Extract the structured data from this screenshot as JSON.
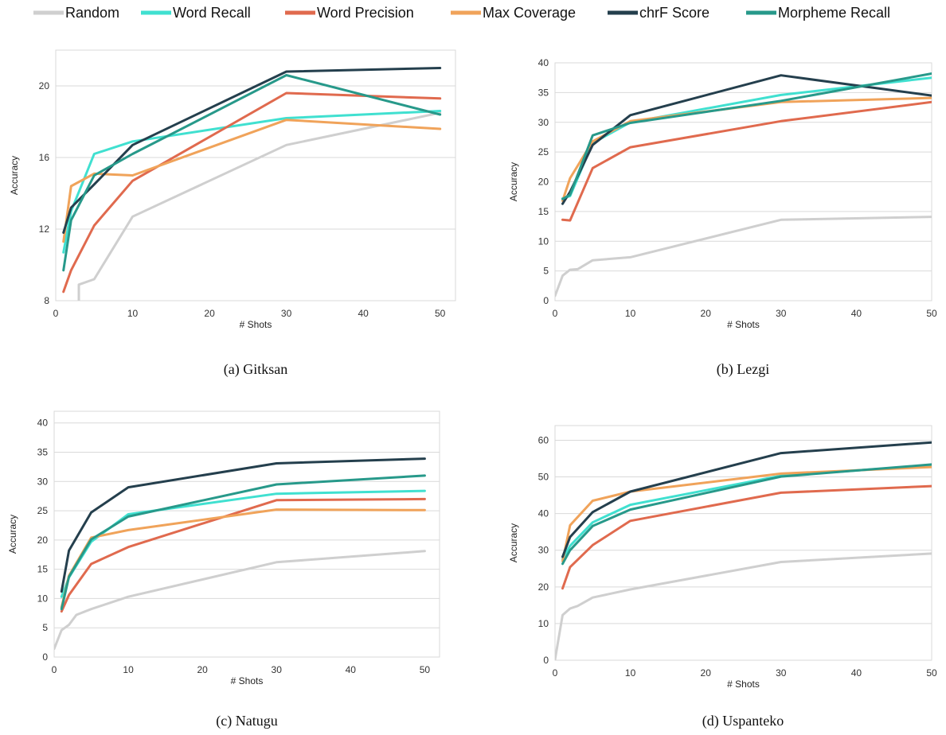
{
  "legend": {
    "placement": "top",
    "items": [
      {
        "label": "Random",
        "color": "#cfcfcf"
      },
      {
        "label": "Word Recall",
        "color": "#40e0d0"
      },
      {
        "label": "Word Precision",
        "color": "#e06a4e"
      },
      {
        "label": "Max Coverage",
        "color": "#f0a35a"
      },
      {
        "label": "chrF Score",
        "color": "#243f4d"
      },
      {
        "label": "Morpheme Recall",
        "color": "#27998a"
      }
    ]
  },
  "chart_data": [
    {
      "type": "line",
      "caption": "(a) Gitksan",
      "xlabel": "# Shots",
      "ylabel": "Accuracy",
      "xlim": [
        0,
        52
      ],
      "ylim": [
        8,
        22
      ],
      "xticks": [
        0,
        10,
        20,
        30,
        40,
        50
      ],
      "yticks": [
        8,
        12,
        16,
        20
      ],
      "grid": "horizontal",
      "series": [
        {
          "name": "Random",
          "color": "#cfcfcf",
          "x": [
            3,
            3,
            5,
            10,
            30,
            50
          ],
          "y": [
            7.9,
            8.9,
            9.2,
            12.7,
            16.7,
            18.5
          ]
        },
        {
          "name": "Word Recall",
          "color": "#40e0d0",
          "x": [
            1,
            2,
            5,
            10,
            30,
            50
          ],
          "y": [
            10.7,
            13.0,
            16.2,
            16.9,
            18.2,
            18.6
          ]
        },
        {
          "name": "Word Precision",
          "color": "#e06a4e",
          "x": [
            1,
            2,
            5,
            10,
            30,
            50
          ],
          "y": [
            8.5,
            9.7,
            12.2,
            14.7,
            19.6,
            19.3
          ]
        },
        {
          "name": "Max Coverage",
          "color": "#f0a35a",
          "x": [
            1,
            2,
            5,
            10,
            30,
            50
          ],
          "y": [
            11.3,
            14.4,
            15.1,
            15.0,
            18.1,
            17.6
          ]
        },
        {
          "name": "chrF Score",
          "color": "#243f4d",
          "x": [
            1,
            2,
            5,
            10,
            30,
            50
          ],
          "y": [
            11.8,
            13.2,
            14.5,
            16.7,
            20.8,
            21.0
          ]
        },
        {
          "name": "Morpheme Recall",
          "color": "#27998a",
          "x": [
            1,
            2,
            5,
            10,
            30,
            50
          ],
          "y": [
            9.7,
            12.5,
            15.0,
            16.2,
            20.6,
            18.4
          ]
        }
      ]
    },
    {
      "type": "line",
      "caption": "(b) Lezgi",
      "xlabel": "# Shots",
      "ylabel": "Accuracy",
      "xlim": [
        0,
        50
      ],
      "ylim": [
        0,
        40
      ],
      "xticks": [
        0,
        10,
        20,
        30,
        40,
        50
      ],
      "yticks": [
        0,
        5,
        10,
        15,
        20,
        25,
        30,
        35,
        40
      ],
      "grid": "horizontal",
      "series": [
        {
          "name": "Random",
          "color": "#cfcfcf",
          "x": [
            0,
            1,
            2,
            3,
            5,
            10,
            30,
            50
          ],
          "y": [
            0.8,
            4.2,
            5.2,
            5.3,
            6.8,
            7.3,
            13.6,
            14.1
          ]
        },
        {
          "name": "Word Recall",
          "color": "#40e0d0",
          "x": [
            1,
            2,
            5,
            10,
            30,
            50
          ],
          "y": [
            17.2,
            17.6,
            26.5,
            30.0,
            34.6,
            37.5
          ]
        },
        {
          "name": "Word Precision",
          "color": "#e06a4e",
          "x": [
            1,
            2,
            5,
            10,
            30,
            50
          ],
          "y": [
            13.6,
            13.5,
            22.3,
            25.8,
            30.2,
            33.4
          ]
        },
        {
          "name": "Max Coverage",
          "color": "#f0a35a",
          "x": [
            1,
            2,
            5,
            10,
            30,
            50
          ],
          "y": [
            16.8,
            20.6,
            26.8,
            30.2,
            33.4,
            34.1
          ]
        },
        {
          "name": "chrF Score",
          "color": "#243f4d",
          "x": [
            1,
            2,
            5,
            10,
            30,
            50
          ],
          "y": [
            16.3,
            18.3,
            26.2,
            31.2,
            37.9,
            34.5
          ]
        },
        {
          "name": "Morpheme Recall",
          "color": "#27998a",
          "x": [
            1,
            2,
            5,
            10,
            30,
            50
          ],
          "y": [
            17.1,
            17.8,
            27.8,
            29.9,
            33.6,
            38.2
          ]
        }
      ]
    },
    {
      "type": "line",
      "caption": "(c) Natugu",
      "xlabel": "# Shots",
      "ylabel": "Accuracy",
      "xlim": [
        0,
        52
      ],
      "ylim": [
        0,
        42
      ],
      "xticks": [
        0,
        10,
        20,
        30,
        40,
        50
      ],
      "yticks": [
        0,
        5,
        10,
        15,
        20,
        25,
        30,
        35,
        40
      ],
      "grid": "horizontal",
      "series": [
        {
          "name": "Random",
          "color": "#cfcfcf",
          "x": [
            0,
            1,
            2,
            3,
            5,
            10,
            30,
            50
          ],
          "y": [
            1.4,
            4.6,
            5.5,
            7.2,
            8.2,
            10.3,
            16.2,
            18.1
          ]
        },
        {
          "name": "Word Recall",
          "color": "#40e0d0",
          "x": [
            1,
            2,
            5,
            10,
            30,
            50
          ],
          "y": [
            10.3,
            13.6,
            19.7,
            24.4,
            27.9,
            28.4
          ]
        },
        {
          "name": "Word Precision",
          "color": "#e06a4e",
          "x": [
            1,
            2,
            5,
            10,
            30,
            50
          ],
          "y": [
            7.8,
            10.6,
            15.9,
            18.8,
            26.8,
            27.0
          ]
        },
        {
          "name": "Max Coverage",
          "color": "#f0a35a",
          "x": [
            1,
            2,
            5,
            10,
            30,
            50
          ],
          "y": [
            8.5,
            13.9,
            20.4,
            21.7,
            25.2,
            25.1
          ]
        },
        {
          "name": "chrF Score",
          "color": "#243f4d",
          "x": [
            1,
            2,
            5,
            10,
            30,
            50
          ],
          "y": [
            11.2,
            18.2,
            24.7,
            29.0,
            33.1,
            33.9
          ]
        },
        {
          "name": "Morpheme Recall",
          "color": "#27998a",
          "x": [
            1,
            2,
            5,
            10,
            30,
            50
          ],
          "y": [
            8.2,
            13.7,
            20.1,
            24.0,
            29.5,
            31.0
          ]
        }
      ]
    },
    {
      "type": "line",
      "caption": "(d) Uspanteko",
      "xlabel": "# Shots",
      "ylabel": "Accuracy",
      "xlim": [
        0,
        50
      ],
      "ylim": [
        0,
        64
      ],
      "xticks": [
        0,
        10,
        20,
        30,
        40,
        50
      ],
      "yticks": [
        0,
        10,
        20,
        30,
        40,
        50,
        60
      ],
      "grid": "horizontal",
      "series": [
        {
          "name": "Random",
          "color": "#cfcfcf",
          "x": [
            0,
            1,
            2,
            3,
            5,
            10,
            30,
            50
          ],
          "y": [
            0.2,
            12.3,
            14.1,
            14.8,
            17.1,
            19.3,
            26.8,
            29.1
          ]
        },
        {
          "name": "Word Recall",
          "color": "#40e0d0",
          "x": [
            1,
            2,
            5,
            10,
            30,
            50
          ],
          "y": [
            27.6,
            31.2,
            37.6,
            42.4,
            50.3,
            53.2
          ]
        },
        {
          "name": "Word Precision",
          "color": "#e06a4e",
          "x": [
            1,
            2,
            5,
            10,
            30,
            50
          ],
          "y": [
            19.6,
            25.4,
            31.4,
            38.0,
            45.7,
            47.5
          ]
        },
        {
          "name": "Max Coverage",
          "color": "#f0a35a",
          "x": [
            1,
            2,
            5,
            10,
            30,
            50
          ],
          "y": [
            27.0,
            36.8,
            43.5,
            46.0,
            50.9,
            52.7
          ]
        },
        {
          "name": "chrF Score",
          "color": "#243f4d",
          "x": [
            1,
            2,
            5,
            10,
            30,
            50
          ],
          "y": [
            28.2,
            33.6,
            40.4,
            46.0,
            56.5,
            59.4
          ]
        },
        {
          "name": "Morpheme Recall",
          "color": "#27998a",
          "x": [
            1,
            2,
            5,
            10,
            30,
            50
          ],
          "y": [
            26.3,
            30.0,
            36.6,
            41.1,
            50.1,
            53.4
          ]
        }
      ]
    }
  ]
}
